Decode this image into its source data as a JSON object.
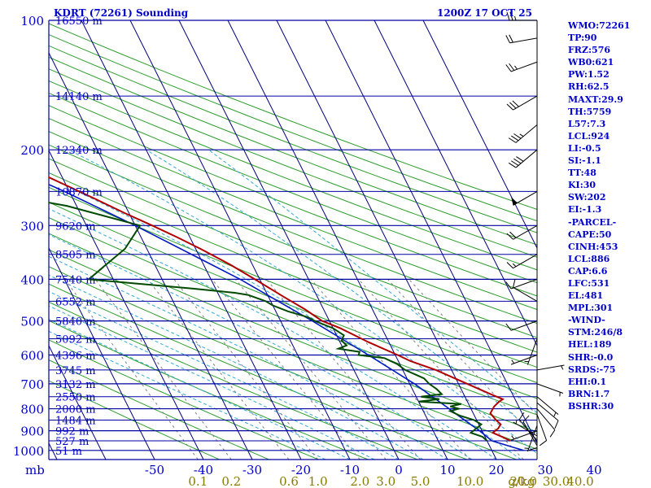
{
  "header": {
    "station": "KDRT (72261) Sounding",
    "time": "1200Z 17 OCT 25"
  },
  "colors": {
    "isobar": "#0000a0",
    "isotherm": "#000080",
    "dry_adiabat": "#2e9e2e",
    "moist_adiabat": "#30a8d8",
    "mixing_ratio": "#808080",
    "temperature": "#b00000",
    "dewpoint": "#004a00",
    "parcel": "#0018c0",
    "text": "#0000cc",
    "mixing_label": "#8a7a00",
    "wind": "#000000"
  },
  "chart_data": {
    "type": "skew-t",
    "title": "KDRT (72261) Sounding",
    "pressure_levels": [
      100,
      200,
      300,
      400,
      500,
      600,
      700,
      800,
      900,
      1000
    ],
    "pressure_labels": [
      "100",
      "200",
      "300",
      "400",
      "500",
      "600",
      "700",
      "800",
      "900",
      "1000"
    ],
    "height_levels": [
      {
        "p": 100,
        "label": "16550 m"
      },
      {
        "p": 150,
        "label": "14140 m"
      },
      {
        "p": 200,
        "label": "12340 m"
      },
      {
        "p": 250,
        "label": "10870 m"
      },
      {
        "p": 300,
        "label": "9620 m"
      },
      {
        "p": 350,
        "label": "8505 m"
      },
      {
        "p": 400,
        "label": "7540 m"
      },
      {
        "p": 450,
        "label": "6552 m"
      },
      {
        "p": 500,
        "label": "5840 m"
      },
      {
        "p": 550,
        "label": "5092 m"
      },
      {
        "p": 600,
        "label": "4396 m"
      },
      {
        "p": 650,
        "label": "3745 m"
      },
      {
        "p": 700,
        "label": "3132 m"
      },
      {
        "p": 750,
        "label": "2550 m"
      },
      {
        "p": 800,
        "label": "2000 m"
      },
      {
        "p": 850,
        "label": "1484 m"
      },
      {
        "p": 900,
        "label": "992 m"
      },
      {
        "p": 950,
        "label": "527 m"
      },
      {
        "p": 1000,
        "label": "51 m"
      }
    ],
    "x_unit": "mb",
    "temperature_ticks": [
      -50,
      -40,
      -30,
      -20,
      -10,
      0,
      10,
      20,
      30,
      40
    ],
    "temperature_tick_labels": [
      "-50",
      "-40",
      "-30",
      "-20",
      "-10",
      "0",
      "10",
      "20",
      "30",
      "40"
    ],
    "mixing_ratio_ticks": [
      0.1,
      0.2,
      0.6,
      1.0,
      2.0,
      3.0,
      5.0,
      10.0,
      20.0,
      30.0,
      40.0
    ],
    "mixing_ratio_labels": [
      "0.1",
      "0.2",
      "0.6",
      "1.0",
      "2.0",
      "3.0",
      "5.0",
      "10.0",
      "20.0",
      "30.0",
      "40.0"
    ],
    "mixing_ratio_unit": "g/kg",
    "temperature_profile": [
      {
        "p": 950,
        "t": 24.8
      },
      {
        "p": 930,
        "t": 23.5
      },
      {
        "p": 910,
        "t": 22.0
      },
      {
        "p": 890,
        "t": 23.5
      },
      {
        "p": 870,
        "t": 24.5
      },
      {
        "p": 850,
        "t": 24.0
      },
      {
        "p": 820,
        "t": 23.5
      },
      {
        "p": 790,
        "t": 25.0
      },
      {
        "p": 770,
        "t": 26.5
      },
      {
        "p": 760,
        "t": 27.5
      },
      {
        "p": 740,
        "t": 25.5
      },
      {
        "p": 700,
        "t": 21.8
      },
      {
        "p": 650,
        "t": 16.8
      },
      {
        "p": 620,
        "t": 12.5
      },
      {
        "p": 600,
        "t": 10.5
      },
      {
        "p": 560,
        "t": 5.8
      },
      {
        "p": 520,
        "t": 1.5
      },
      {
        "p": 500,
        "t": -1.5
      },
      {
        "p": 470,
        "t": -3.8
      },
      {
        "p": 440,
        "t": -6.8
      },
      {
        "p": 400,
        "t": -11.0
      },
      {
        "p": 370,
        "t": -14.5
      },
      {
        "p": 340,
        "t": -19.0
      },
      {
        "p": 320,
        "t": -22.5
      },
      {
        "p": 300,
        "t": -26.5
      },
      {
        "p": 280,
        "t": -31.0
      },
      {
        "p": 260,
        "t": -35.5
      },
      {
        "p": 240,
        "t": -40.5
      },
      {
        "p": 220,
        "t": -46.0
      },
      {
        "p": 200,
        "t": -52.0
      },
      {
        "p": 170,
        "t": -61.0
      },
      {
        "p": 150,
        "t": -67.0
      },
      {
        "p": 130,
        "t": -68.0
      },
      {
        "p": 115,
        "t": -66.0
      },
      {
        "p": 100,
        "t": -66.5
      }
    ],
    "dewpoint_profile": [
      {
        "p": 950,
        "t": 20.0
      },
      {
        "p": 930,
        "t": 19.5
      },
      {
        "p": 910,
        "t": 17.5
      },
      {
        "p": 890,
        "t": 19.0
      },
      {
        "p": 870,
        "t": 20.5
      },
      {
        "p": 850,
        "t": 19.5
      },
      {
        "p": 830,
        "t": 17.0
      },
      {
        "p": 810,
        "t": 15.5
      },
      {
        "p": 800,
        "t": 17.5
      },
      {
        "p": 790,
        "t": 16.0
      },
      {
        "p": 780,
        "t": 18.5
      },
      {
        "p": 770,
        "t": 10.0
      },
      {
        "p": 760,
        "t": 14.5
      },
      {
        "p": 750,
        "t": 11.0
      },
      {
        "p": 740,
        "t": 15.5
      },
      {
        "p": 720,
        "t": 15.0
      },
      {
        "p": 700,
        "t": 14.0
      },
      {
        "p": 680,
        "t": 13.5
      },
      {
        "p": 650,
        "t": 10.5
      },
      {
        "p": 630,
        "t": 9.5
      },
      {
        "p": 610,
        "t": 7.5
      },
      {
        "p": 600,
        "t": 2.5
      },
      {
        "p": 590,
        "t": 3.0
      },
      {
        "p": 580,
        "t": -1.0
      },
      {
        "p": 570,
        "t": 1.0
      },
      {
        "p": 555,
        "t": 0.5
      },
      {
        "p": 540,
        "t": 1.5
      },
      {
        "p": 520,
        "t": 0.0
      },
      {
        "p": 500,
        "t": -3.0
      },
      {
        "p": 490,
        "t": -4.0
      },
      {
        "p": 475,
        "t": -7.5
      },
      {
        "p": 460,
        "t": -10.0
      },
      {
        "p": 450,
        "t": -11.0
      },
      {
        "p": 435,
        "t": -14.0
      },
      {
        "p": 430,
        "t": -16.5
      },
      {
        "p": 420,
        "t": -25.0
      },
      {
        "p": 400,
        "t": -45.0
      },
      {
        "p": 370,
        "t": -40.0
      },
      {
        "p": 340,
        "t": -34.5
      },
      {
        "p": 300,
        "t": -29.0
      },
      {
        "p": 270,
        "t": -42.0
      },
      {
        "p": 250,
        "t": -57.0
      },
      {
        "p": 200,
        "t": -78.0
      },
      {
        "p": 150,
        "t": -87.0
      },
      {
        "p": 120,
        "t": -88.0
      },
      {
        "p": 100,
        "t": -92.0
      }
    ],
    "parcel_profile": [
      {
        "p": 1000,
        "t": 26.5
      },
      {
        "p": 950,
        "t": 21.0
      },
      {
        "p": 900,
        "t": 19.5
      },
      {
        "p": 850,
        "t": 17.5
      },
      {
        "p": 800,
        "t": 15.5
      },
      {
        "p": 700,
        "t": 11.0
      },
      {
        "p": 600,
        "t": 4.5
      },
      {
        "p": 500,
        "t": -3.5
      },
      {
        "p": 400,
        "t": -14.0
      },
      {
        "p": 300,
        "t": -30.0
      },
      {
        "p": 250,
        "t": -41.0
      },
      {
        "p": 200,
        "t": -56.0
      },
      {
        "p": 150,
        "t": -76.0
      },
      {
        "p": 120,
        "t": -89.0
      }
    ],
    "wind_profile": [
      {
        "p": 975,
        "dir": 330,
        "spd": 10
      },
      {
        "p": 950,
        "dir": 320,
        "spd": 10
      },
      {
        "p": 925,
        "dir": 300,
        "spd": 5
      },
      {
        "p": 900,
        "dir": 250,
        "spd": 5
      },
      {
        "p": 875,
        "dir": 200,
        "spd": 5
      },
      {
        "p": 850,
        "dir": 180,
        "spd": 10
      },
      {
        "p": 825,
        "dir": 160,
        "spd": 10
      },
      {
        "p": 800,
        "dir": 140,
        "spd": 10
      },
      {
        "p": 775,
        "dir": 130,
        "spd": 10
      },
      {
        "p": 750,
        "dir": 130,
        "spd": 5
      },
      {
        "p": 700,
        "dir": 110,
        "spd": 5
      },
      {
        "p": 650,
        "dir": 80,
        "spd": 5
      },
      {
        "p": 600,
        "dir": 250,
        "spd": 5
      },
      {
        "p": 550,
        "dir": 200,
        "spd": 5
      },
      {
        "p": 500,
        "dir": 250,
        "spd": 10
      },
      {
        "p": 450,
        "dir": 300,
        "spd": 10
      },
      {
        "p": 400,
        "dir": 250,
        "spd": 10
      },
      {
        "p": 350,
        "dir": 240,
        "spd": 15
      },
      {
        "p": 300,
        "dir": 240,
        "spd": 20
      },
      {
        "p": 250,
        "dir": 240,
        "spd": 50
      },
      {
        "p": 200,
        "dir": 230,
        "spd": 40
      },
      {
        "p": 175,
        "dir": 230,
        "spd": 35
      },
      {
        "p": 150,
        "dir": 240,
        "spd": 30
      },
      {
        "p": 125,
        "dir": 250,
        "spd": 25
      },
      {
        "p": 110,
        "dir": 260,
        "spd": 20
      },
      {
        "p": 100,
        "dir": 270,
        "spd": 25
      }
    ]
  },
  "indices": [
    "WMO:72261",
    "TP:90",
    "FRZ:576",
    "WB0:621",
    "PW:1.52",
    "RH:62.5",
    "MAXT:29.9",
    "TH:5759",
    "L57:7.3",
    "LCL:924",
    "LI:-0.5",
    "SI:-1.1",
    "TT:48",
    "KI:30",
    "SW:202",
    "EI:-1.3",
    "-PARCEL-",
    "CAPE:50",
    "CINH:453",
    "LCL:886",
    "CAP:6.6",
    "LFC:531",
    "EL:481",
    "MPL:301",
    "-WIND-",
    "STM:246/8",
    "HEL:189",
    "SHR:-0.0",
    "SRDS:-75",
    "EHI:0.1",
    "BRN:1.7",
    "BSHR:30"
  ]
}
